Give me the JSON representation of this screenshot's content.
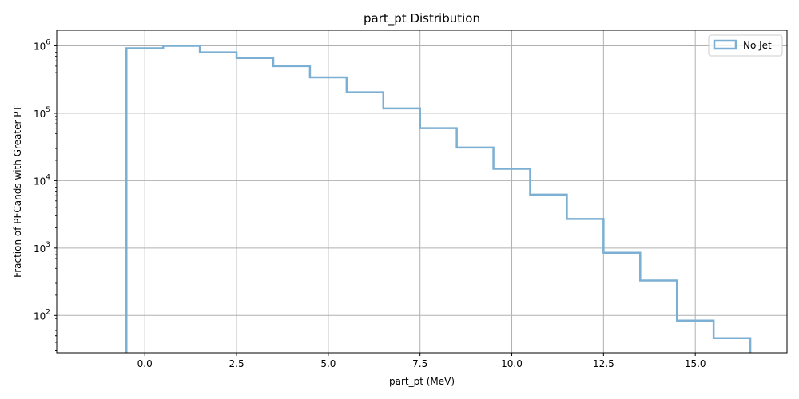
{
  "chart_data": {
    "type": "histogram",
    "title": "part_pt Distribution",
    "xlabel": "part_pt (MeV)",
    "ylabel": "Fraction of PFCands with Greater PT",
    "xlim": [
      -2.4,
      17.5
    ],
    "ylim": [
      28,
      1700000
    ],
    "yscale": "log",
    "grid": true,
    "legend_position": "top-right",
    "x_ticks": [
      0.0,
      2.5,
      5.0,
      7.5,
      10.0,
      12.5,
      15.0
    ],
    "x_tick_labels": [
      "0.0",
      "2.5",
      "5.0",
      "7.5",
      "10.0",
      "12.5",
      "15.0"
    ],
    "y_ticks": [
      100,
      1000,
      10000,
      100000,
      1000000
    ],
    "y_tick_labels": [
      {
        "base": "10",
        "exp": "2"
      },
      {
        "base": "10",
        "exp": "3"
      },
      {
        "base": "10",
        "exp": "4"
      },
      {
        "base": "10",
        "exp": "5"
      },
      {
        "base": "10",
        "exp": "6"
      }
    ],
    "series": [
      {
        "name": "No Jet",
        "color": "#7bafd4",
        "bin_edges": [
          -0.5,
          0.5,
          1.5,
          2.5,
          3.5,
          4.5,
          5.5,
          6.5,
          7.5,
          8.5,
          9.5,
          10.5,
          11.5,
          12.5,
          13.5,
          14.5,
          15.5,
          16.5
        ],
        "values": [
          920000,
          1000000,
          800000,
          660000,
          500000,
          340000,
          205000,
          118000,
          60000,
          31000,
          15000,
          6200,
          2700,
          850,
          330,
          84,
          46
        ]
      }
    ]
  }
}
